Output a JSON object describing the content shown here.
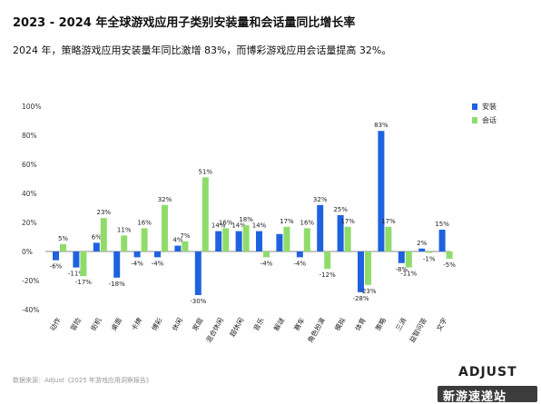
{
  "header": {
    "title": "2023 - 2024 年全球游戏应用子类别安装量和会话量同比增长率",
    "subtitle": "2024 年，策略游戏应用安装量年同比激增 83%，而博彩游戏应用会话量提高 32%。"
  },
  "footer": {
    "source": "数据来源：Adjust《2025 年游戏应用洞察报告》",
    "brand": "ADJUST",
    "watermark": "新游速递站"
  },
  "colors": {
    "install": "#1f62e0",
    "session": "#8fdc6a"
  },
  "chart_data": {
    "type": "bar",
    "categories": [
      "动作",
      "冒险",
      "街机",
      "桌面",
      "卡牌",
      "博彩",
      "休闲",
      "家庭",
      "混合休闲",
      "超休闲",
      "音乐",
      "解谜",
      "赛车",
      "角色扮演",
      "模拟",
      "体育",
      "策略",
      "三消",
      "益智问答",
      "文字"
    ],
    "series": [
      {
        "name": "安装",
        "values": [
          -6,
          -11,
          6,
          -18,
          -4,
          -4,
          4,
          -30,
          14,
          14,
          14,
          12,
          -4,
          32,
          25,
          -28,
          83,
          -8,
          2,
          15
        ],
        "labels": [
          "-6%",
          "-11%",
          "6%",
          "-18%",
          "-4%",
          "-4%",
          "4%",
          "-30%",
          "14%",
          "14%",
          "14%",
          "",
          "-4%",
          "32%",
          "25%",
          "-28%",
          "83%",
          "-8%",
          "2%",
          "15%"
        ]
      },
      {
        "name": "会话",
        "values": [
          5,
          -17,
          23,
          11,
          16,
          32,
          7,
          51,
          16,
          18,
          -4,
          17,
          16,
          -12,
          17,
          -23,
          17,
          -11,
          -1,
          -5
        ],
        "labels": [
          "5%",
          "-17%",
          "23%",
          "11%",
          "16%",
          "32%",
          "7%",
          "51%",
          "16%",
          "18%",
          "-4%",
          "17%",
          "16%",
          "-12%",
          "17%",
          "-23%",
          "17%",
          "-11%",
          "-1%",
          "-5%"
        ]
      }
    ],
    "y_ticks": [
      "100%",
      "80%",
      "60%",
      "40%",
      "20%",
      "0%",
      "-20%",
      "-40%"
    ],
    "ylim": [
      -40,
      100
    ],
    "legend_position": "top-right",
    "grid": false
  }
}
